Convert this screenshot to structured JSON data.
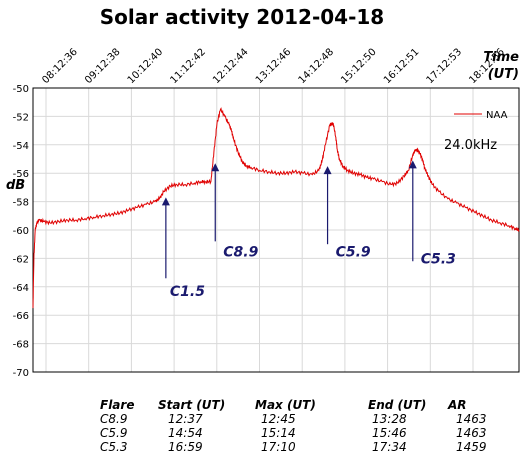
{
  "chart_data": {
    "type": "line",
    "title": "Solar activity 2012-04-18",
    "xlabel": "Time (UT)",
    "xlabel_line1": "Time",
    "xlabel_line2": "(UT)",
    "ylabel": "dB",
    "x_tick_labels": [
      "08:12:36",
      "09:12:38",
      "10:12:40",
      "11:12:42",
      "12:12:44",
      "13:12:46",
      "14:12:48",
      "15:12:50",
      "16:12:51",
      "17:12:53",
      "18:12:56"
    ],
    "x_range_hours": [
      8.21,
      19.33
    ],
    "ylim": [
      -70,
      -50
    ],
    "y_ticks": [
      -50,
      -52,
      -54,
      -56,
      -58,
      -60,
      -62,
      -64,
      -66,
      -68,
      -70
    ],
    "grid": true,
    "legend_position": "top-right",
    "frequency_label": "24.0kHz",
    "series": [
      {
        "name": "NAA",
        "color": "#e00000",
        "x": [
          8.21,
          8.23,
          8.26,
          8.3,
          8.35,
          8.45,
          8.6,
          8.8,
          9.0,
          9.2,
          9.4,
          9.6,
          9.8,
          10.0,
          10.2,
          10.4,
          10.6,
          10.8,
          11.0,
          11.1,
          11.2,
          11.35,
          11.5,
          11.7,
          11.9,
          12.05,
          12.15,
          12.28,
          12.35,
          12.42,
          12.5,
          12.6,
          12.7,
          12.75,
          12.8,
          12.9,
          13.0,
          13.1,
          13.2,
          13.4,
          13.6,
          13.8,
          14.0,
          14.2,
          14.4,
          14.6,
          14.75,
          14.82,
          14.9,
          15.0,
          15.08,
          15.14,
          15.17,
          15.22,
          15.3,
          15.4,
          15.55,
          15.7,
          15.85,
          16.0,
          16.2,
          16.4,
          16.55,
          16.7,
          16.8,
          16.9,
          16.97,
          17.05,
          17.12,
          17.17,
          17.25,
          17.35,
          17.5,
          17.7,
          17.9,
          18.1,
          18.3,
          18.5,
          18.7,
          18.9,
          19.1,
          19.25,
          19.33
        ],
        "values": [
          -65.5,
          -62.0,
          -60.0,
          -59.5,
          -59.3,
          -59.4,
          -59.5,
          -59.4,
          -59.3,
          -59.3,
          -59.2,
          -59.1,
          -59.0,
          -58.9,
          -58.8,
          -58.6,
          -58.4,
          -58.2,
          -58.0,
          -57.8,
          -57.3,
          -56.9,
          -56.8,
          -56.8,
          -56.7,
          -56.6,
          -56.6,
          -56.6,
          -54.5,
          -52.5,
          -51.5,
          -52.0,
          -52.6,
          -53.0,
          -53.6,
          -54.5,
          -55.2,
          -55.5,
          -55.6,
          -55.8,
          -55.9,
          -56.0,
          -56.0,
          -55.9,
          -56.0,
          -56.1,
          -55.8,
          -55.2,
          -54.0,
          -52.6,
          -52.5,
          -53.5,
          -54.3,
          -55.0,
          -55.5,
          -55.8,
          -56.0,
          -56.1,
          -56.3,
          -56.4,
          -56.6,
          -56.8,
          -56.7,
          -56.2,
          -55.8,
          -54.7,
          -54.3,
          -54.5,
          -55.0,
          -55.6,
          -56.2,
          -56.8,
          -57.3,
          -57.8,
          -58.1,
          -58.4,
          -58.7,
          -59.0,
          -59.3,
          -59.5,
          -59.7,
          -59.9,
          -60.0
        ]
      }
    ],
    "annotations": [
      {
        "label": "C1.5",
        "arrow_x": 11.25,
        "arrow_top_value": -57.7,
        "arrow_bottom_value": -63.4,
        "text_value": -64.3
      },
      {
        "label": "C8.9",
        "arrow_x": 12.38,
        "arrow_top_value": -55.3,
        "arrow_bottom_value": -60.8,
        "text_value": -61.5
      },
      {
        "label": "C5.9",
        "arrow_x": 14.95,
        "arrow_top_value": -55.5,
        "arrow_bottom_value": -61.0,
        "text_value": -61.5
      },
      {
        "label": "C5.3",
        "arrow_x": 16.9,
        "arrow_top_value": -55.1,
        "arrow_bottom_value": -62.2,
        "text_value": -62.0
      }
    ]
  },
  "flare_table": {
    "headers": [
      "Flare",
      "Start (UT)",
      "Max (UT)",
      "End (UT)",
      "AR"
    ],
    "rows": [
      [
        "C8.9",
        "12:37",
        "12:45",
        "13:28",
        "1463"
      ],
      [
        "C5.9",
        "14:54",
        "15:14",
        "15:46",
        "1463"
      ],
      [
        "C5.3",
        "16:59",
        "17:10",
        "17:34",
        "1459"
      ]
    ]
  }
}
